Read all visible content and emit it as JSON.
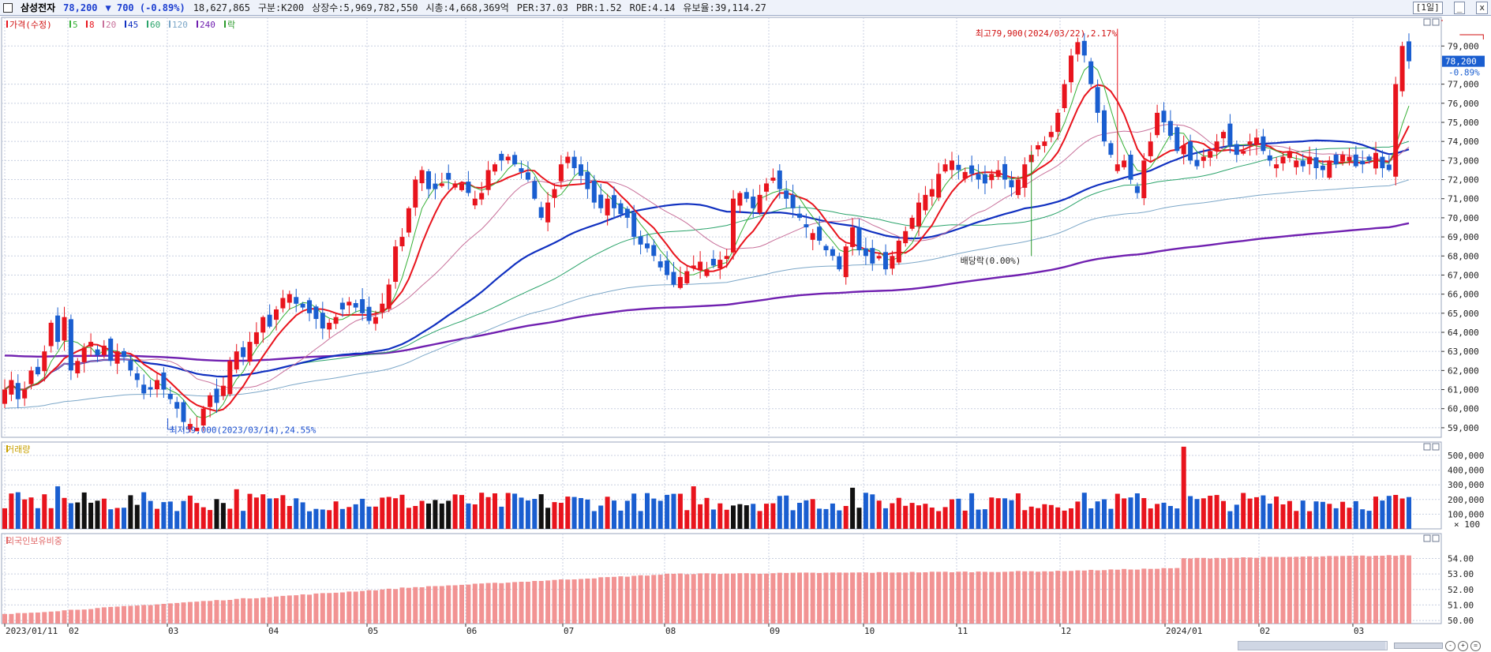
{
  "header": {
    "name": "삼성전자",
    "price": "78,200",
    "change": "▼ 700 (-0.89%)",
    "volume": "18,627,865",
    "market": "구분:K200",
    "listed": "상장수:5,969,782,550",
    "mcap": "시총:4,668,369억",
    "per": "PER:37.03",
    "pbr": "PBR:1.52",
    "roe": "ROE:4.14",
    "float": "유보율:39,114.27",
    "period": "[1일]"
  },
  "colors": {
    "up": "#e8141d",
    "down": "#1a5ed0",
    "ma5": "#36b036",
    "ma8": "#e8141d",
    "ma20": "#c8709a",
    "ma45": "#1030c0",
    "ma60": "#2aa36a",
    "ma120": "#7ca7c8",
    "ma240": "#7020b0",
    "volbar": "#1a5ed0",
    "foreign": "#f08080",
    "grid": "#c8cfe0"
  },
  "legend": {
    "price": "가격(수정)",
    "ma5": "5",
    "ma8": "8",
    "ma20": "20",
    "ma45": "45",
    "ma60": "60",
    "ma120": "120",
    "ma240": "240",
    "exdiv": "락"
  },
  "annotations": {
    "high": "최고79,900(2024/03/22),2.17%",
    "low": "최저59,000(2023/03/14),24.55%",
    "dividend": "배당락(0.00%)",
    "current_price": "78,200",
    "current_change": "-0.89%"
  },
  "chart_data": [
    {
      "type": "candlestick",
      "title": "가격(수정)",
      "ylim": [
        58500,
        80500
      ],
      "y_ticks": [
        59000,
        60000,
        61000,
        62000,
        63000,
        64000,
        65000,
        66000,
        67000,
        68000,
        69000,
        70000,
        71000,
        72000,
        73000,
        74000,
        75000,
        76000,
        77000,
        79000
      ],
      "y_tick_labels": [
        "59,000",
        "60,000",
        "61,000",
        "62,000",
        "63,000",
        "64,000",
        "65,000",
        "66,000",
        "67,000",
        "68,000",
        "69,000",
        "70,000",
        "71,000",
        "72,000",
        "73,000",
        "74,000",
        "75,000",
        "76,000",
        "77,000",
        "79,000"
      ],
      "x_tick_labels": [
        "2023/01/11",
        "02",
        "03",
        "04",
        "05",
        "06",
        "07",
        "08",
        "09",
        "10",
        "11",
        "12",
        "2024/01",
        "02",
        "03"
      ],
      "closes": [
        61000,
        61500,
        60500,
        61000,
        62000,
        61800,
        63000,
        64500,
        63500,
        64800,
        62000,
        62500,
        63200,
        63500,
        62800,
        63300,
        62500,
        63000,
        62700,
        62000,
        61500,
        60800,
        61000,
        61500,
        61000,
        60500,
        60000,
        59300,
        59200,
        59000,
        60000,
        60700,
        60300,
        61200,
        62500,
        63000,
        62700,
        63500,
        64000,
        64800,
        64300,
        65200,
        65800,
        66000,
        65500,
        65300,
        65000,
        64700,
        64200,
        64500,
        64800,
        65200,
        65600,
        65300,
        65000,
        64600,
        64800,
        65500,
        66500,
        68500,
        69000,
        70500,
        72000,
        72500,
        71500,
        71500,
        71800,
        72000,
        71800,
        71800,
        71300,
        71000,
        71300,
        72500,
        72800,
        73000,
        73200,
        72800,
        72400,
        72000,
        71000,
        70000,
        70800,
        71500,
        72800,
        73200,
        72600,
        72200,
        71500,
        70800,
        70500,
        71000,
        70500,
        70200,
        70000,
        69000,
        68600,
        68400,
        68000,
        67400,
        67000,
        66500,
        66900,
        67200,
        67500,
        67700,
        67300,
        67500,
        67800,
        68000,
        71000,
        71300,
        71000,
        70500,
        71200,
        71800,
        72100,
        71500,
        71000,
        70500,
        70000,
        69500,
        69200,
        68800,
        68300,
        68000,
        67300,
        68500,
        69500,
        68300,
        68000,
        67600,
        68000,
        67300,
        68000,
        68800,
        69300,
        70000,
        70800,
        71200,
        71500,
        72300,
        72800,
        73000,
        72500,
        72400,
        72300,
        72000,
        71800,
        72300,
        72500,
        72000,
        71600,
        72000,
        72800,
        73300,
        73800,
        74000,
        74500,
        75500,
        77000,
        78500,
        79200,
        78500,
        77000,
        75500,
        74000,
        73300,
        72800,
        73000,
        72000,
        71300,
        73000,
        74000,
        75500,
        75000,
        74300,
        73500,
        73800,
        73000,
        72700,
        73200,
        73500,
        74000,
        74500,
        73800,
        73300,
        73500,
        74000,
        74200,
        73500,
        73000,
        72800,
        73200,
        73500,
        73000,
        72700,
        73200,
        72600,
        72500,
        73000,
        72800,
        73300,
        73200,
        72700,
        72800,
        73000,
        73400,
        72600,
        72500,
        77000,
        79000,
        78200
      ]
    },
    {
      "type": "bar",
      "title": "거래량",
      "unit": "× 100",
      "ylim": [
        0,
        570000
      ],
      "y_tick_labels": [
        "100,000",
        "200,000",
        "300,000",
        "400,000",
        "500,000"
      ]
    },
    {
      "type": "bar",
      "title": "외국인보유비중",
      "ylim": [
        49.8,
        55.6
      ],
      "y_tick_labels": [
        "50.00",
        "51.00",
        "52.00",
        "53.00",
        "54.00"
      ]
    }
  ]
}
